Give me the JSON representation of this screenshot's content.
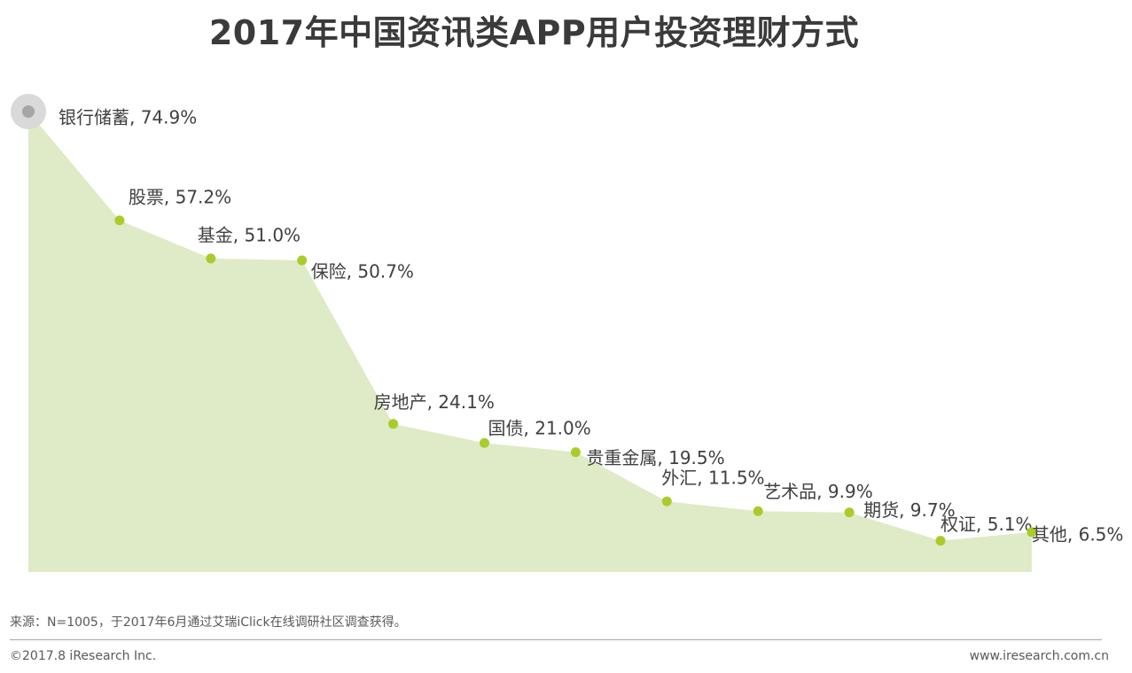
{
  "title": "2017年中国资讯类APP用户投资理财方式",
  "chart_data": {
    "type": "area",
    "title": "2017年中国资讯类APP用户投资理财方式",
    "categories": [
      "银行储蓄",
      "股票",
      "基金",
      "保险",
      "房地产",
      "国债",
      "贵重金属",
      "外汇",
      "艺术品",
      "期货",
      "权证",
      "其他"
    ],
    "values": [
      74.9,
      57.2,
      51.0,
      50.7,
      24.1,
      21.0,
      19.5,
      11.5,
      9.9,
      9.7,
      5.1,
      6.5
    ],
    "data_labels": [
      "银行储蓄, 74.9%",
      "股票, 57.2%",
      "基金, 51.0%",
      "保险, 50.7%",
      "房地产, 24.1%",
      "国债, 21.0%",
      "贵重金属, 19.5%",
      "外汇, 11.5%",
      "艺术品, 9.9%",
      "期货, 9.7%",
      "权证, 5.1%",
      "其他, 6.5%"
    ],
    "unit": "%",
    "colors": {
      "fill": "#deebc6",
      "marker": "#a9cc2a",
      "highlight_ring": "#d9d9d9",
      "highlight_dot": "#a6a6a6"
    },
    "grid": false,
    "axes_visible": false
  },
  "footer": {
    "source": "来源：N=1005，于2017年6月通过艾瑞iClick在线调研社区调查获得。",
    "copyright": "©2017.8 iResearch Inc.",
    "website": "www.iresearch.com.cn"
  }
}
